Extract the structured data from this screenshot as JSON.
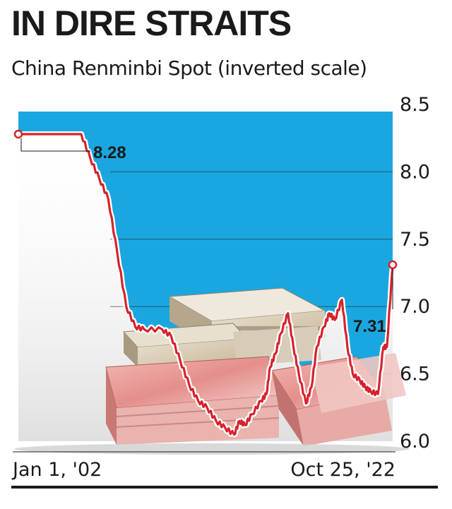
{
  "header": {
    "title": "IN DIRE STRAITS",
    "subtitle": "China Renminbi Spot (inverted scale)"
  },
  "colors": {
    "area": "#1aa7e0",
    "line": "#d8222b",
    "text": "#1a1a1a"
  },
  "chart_data": {
    "type": "area",
    "inverted_y": true,
    "ylim": [
      6.0,
      8.5
    ],
    "y_ticks": [
      "8.5",
      "8.0",
      "7.5",
      "7.0",
      "6.5",
      "6.0"
    ],
    "x_labels": {
      "start": "Jan 1, '02",
      "end": "Oct 25, '22"
    },
    "annotations": {
      "start_value": "8.28",
      "end_value": "7.31"
    },
    "series": [
      {
        "x": [
          2002.0,
          2003.0,
          2004.0,
          2005.5,
          2006.0,
          2006.5,
          2007.0,
          2007.5,
          2008.0,
          2008.5,
          2009.0,
          2010.0,
          2010.5,
          2011.0,
          2011.5,
          2012.0,
          2012.5,
          2013.0,
          2013.5,
          2014.0,
          2014.3,
          2014.6,
          2015.0,
          2015.5,
          2015.8,
          2016.0,
          2016.3,
          2016.6,
          2017.0,
          2017.3,
          2017.6,
          2018.0,
          2018.3,
          2018.6,
          2019.0,
          2019.3,
          2019.6,
          2020.0,
          2020.3,
          2020.6,
          2021.0,
          2021.3,
          2021.6,
          2022.0,
          2022.3,
          2022.5,
          2022.82
        ],
        "y": [
          8.28,
          8.28,
          8.28,
          8.28,
          8.1,
          7.95,
          7.8,
          7.4,
          7.0,
          6.85,
          6.83,
          6.83,
          6.78,
          6.6,
          6.42,
          6.3,
          6.25,
          6.15,
          6.1,
          6.05,
          6.15,
          6.12,
          6.2,
          6.3,
          6.35,
          6.55,
          6.65,
          6.8,
          6.95,
          6.7,
          6.5,
          6.28,
          6.4,
          6.7,
          6.85,
          6.95,
          6.9,
          7.05,
          6.7,
          6.5,
          6.45,
          6.4,
          6.37,
          6.35,
          6.7,
          6.7,
          7.31
        ]
      }
    ]
  }
}
